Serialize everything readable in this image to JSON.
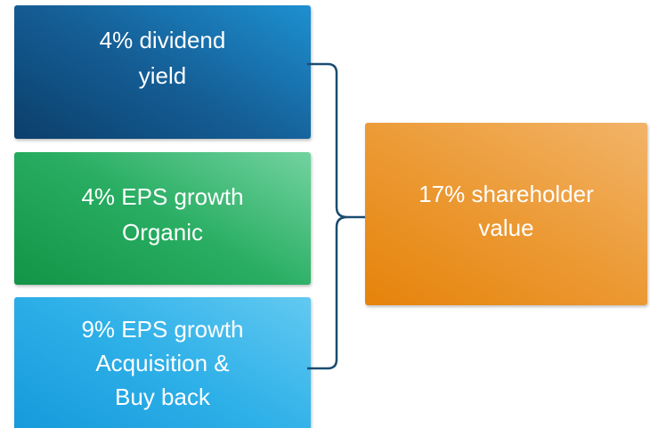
{
  "nodes": [
    {
      "lines": [
        "4% dividend",
        "yield"
      ]
    },
    {
      "lines": [
        "4% EPS growth",
        "Organic"
      ]
    },
    {
      "lines": [
        "9% EPS growth",
        "Acquisition &",
        "Buy back"
      ]
    },
    {
      "lines": [
        "17% shareholder",
        "value"
      ]
    }
  ]
}
